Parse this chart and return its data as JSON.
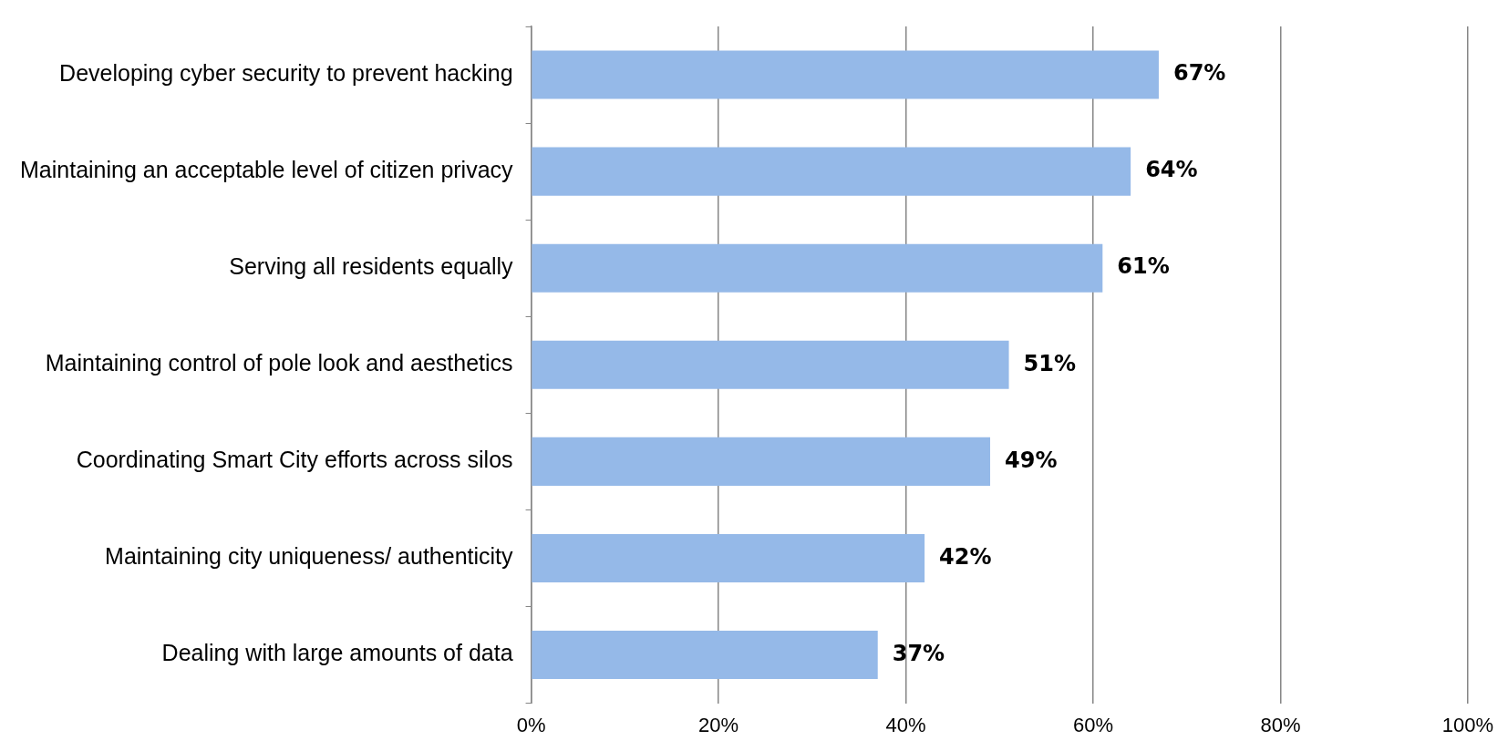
{
  "chart_data": {
    "type": "bar",
    "orientation": "horizontal",
    "categories": [
      "Developing cyber security to prevent hacking",
      "Maintaining an acceptable level of citizen privacy",
      "Serving all residents equally",
      "Maintaining control of pole look and aesthetics",
      "Coordinating Smart City efforts across silos",
      "Maintaining city uniqueness/ authenticity",
      "Dealing with large amounts of data"
    ],
    "values": [
      67,
      64,
      61,
      51,
      49,
      42,
      37
    ],
    "value_labels": [
      "67%",
      "64%",
      "61%",
      "51%",
      "49%",
      "42%",
      "37%"
    ],
    "color": "#95b9e8",
    "xlim": [
      0,
      100
    ],
    "xticks": [
      {
        "value": 0,
        "label": "0%"
      },
      {
        "value": 20,
        "label": "20%"
      },
      {
        "value": 40,
        "label": "40%"
      },
      {
        "value": 60,
        "label": "60%"
      },
      {
        "value": 80,
        "label": "80%"
      },
      {
        "value": 100,
        "label": "100%"
      }
    ],
    "grid": "x",
    "legend": false
  }
}
